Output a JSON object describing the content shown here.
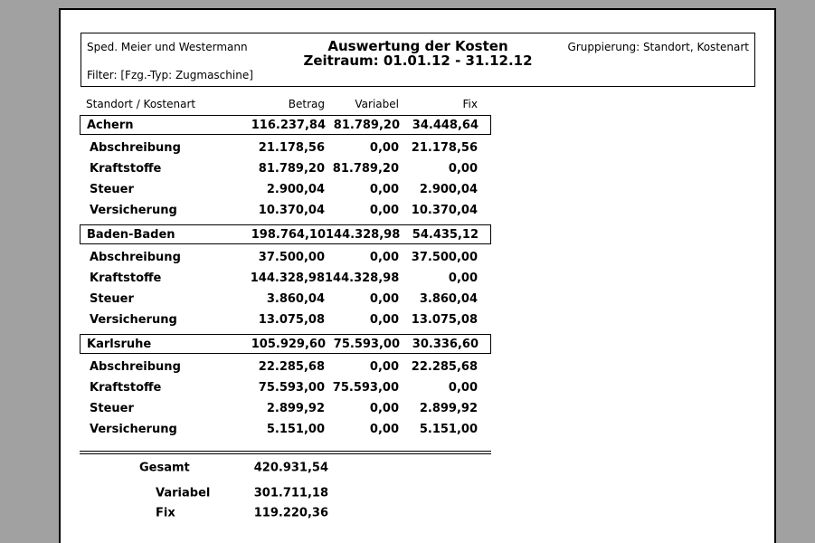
{
  "report": {
    "header": {
      "company": "Sped. Meier und Westermann",
      "title": "Auswertung der Kosten",
      "period": "Zeitraum: 01.01.12 - 31.12.12",
      "grouping": "Gruppierung: Standort, Kostenart",
      "filter": "Filter: [Fzg.-Typ: Zugmaschine]"
    },
    "table": {
      "columns": [
        "Standort / Kostenart",
        "Betrag",
        "Variabel",
        "Fix"
      ],
      "groups": [
        {
          "name": "Achern",
          "betrag": "116.237,84",
          "variabel": "81.789,20",
          "fix": "34.448,64",
          "rows": [
            {
              "name": "Abschreibung",
              "betrag": "21.178,56",
              "variabel": "0,00",
              "fix": "21.178,56"
            },
            {
              "name": "Kraftstoffe",
              "betrag": "81.789,20",
              "variabel": "81.789,20",
              "fix": "0,00"
            },
            {
              "name": "Steuer",
              "betrag": "2.900,04",
              "variabel": "0,00",
              "fix": "2.900,04"
            },
            {
              "name": "Versicherung",
              "betrag": "10.370,04",
              "variabel": "0,00",
              "fix": "10.370,04"
            }
          ]
        },
        {
          "name": "Baden-Baden",
          "betrag": "198.764,10",
          "variabel": "144.328,98",
          "fix": "54.435,12",
          "rows": [
            {
              "name": "Abschreibung",
              "betrag": "37.500,00",
              "variabel": "0,00",
              "fix": "37.500,00"
            },
            {
              "name": "Kraftstoffe",
              "betrag": "144.328,98",
              "variabel": "144.328,98",
              "fix": "0,00"
            },
            {
              "name": "Steuer",
              "betrag": "3.860,04",
              "variabel": "0,00",
              "fix": "3.860,04"
            },
            {
              "name": "Versicherung",
              "betrag": "13.075,08",
              "variabel": "0,00",
              "fix": "13.075,08"
            }
          ]
        },
        {
          "name": "Karlsruhe",
          "betrag": "105.929,60",
          "variabel": "75.593,00",
          "fix": "30.336,60",
          "rows": [
            {
              "name": "Abschreibung",
              "betrag": "22.285,68",
              "variabel": "0,00",
              "fix": "22.285,68"
            },
            {
              "name": "Kraftstoffe",
              "betrag": "75.593,00",
              "variabel": "75.593,00",
              "fix": "0,00"
            },
            {
              "name": "Steuer",
              "betrag": "2.899,92",
              "variabel": "0,00",
              "fix": "2.899,92"
            },
            {
              "name": "Versicherung",
              "betrag": "5.151,00",
              "variabel": "0,00",
              "fix": "5.151,00"
            }
          ]
        }
      ]
    },
    "totals": {
      "gesamt_label": "Gesamt",
      "gesamt_value": "420.931,54",
      "variabel_label": "Variabel",
      "variabel_value": "301.711,18",
      "fix_label": "Fix",
      "fix_value": "119.220,36"
    }
  },
  "colors": {
    "backdrop": "#a1a1a1",
    "page_background": "#ffffff",
    "border": "#000000",
    "text": "#000000"
  }
}
